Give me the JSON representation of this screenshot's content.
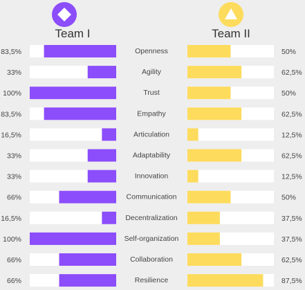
{
  "chart_data": {
    "type": "bar",
    "layout": "butterfly",
    "xlim": [
      0,
      100
    ],
    "categories": [
      "Openness",
      "Agility",
      "Trust",
      "Empathy",
      "Articulation",
      "Adaptability",
      "Innovation",
      "Communication",
      "Decentralization",
      "Self-organization",
      "Collaboration",
      "Resilience"
    ],
    "series": [
      {
        "name": "Team I",
        "icon": "diamond-icon",
        "color": "#8c4dfb",
        "values": [
          83.5,
          33,
          100,
          83.5,
          16.5,
          33,
          33,
          66,
          16.5,
          100,
          66,
          66
        ],
        "labels": [
          "83,5%",
          "33%",
          "100%",
          "83,5%",
          "16,5%",
          "33%",
          "33%",
          "66%",
          "16,5%",
          "100%",
          "66%",
          "66%"
        ]
      },
      {
        "name": "Team II",
        "icon": "triangle-icon",
        "color": "#fddb5c",
        "values": [
          50,
          62.5,
          50,
          62.5,
          12.5,
          62.5,
          12.5,
          50,
          37.5,
          37.5,
          62.5,
          87.5
        ],
        "labels": [
          "50%",
          "62,5%",
          "50%",
          "62,5%",
          "12,5%",
          "62,5%",
          "12,5%",
          "50%",
          "37,5%",
          "37,5%",
          "62,5%",
          "87,5%"
        ]
      }
    ]
  }
}
